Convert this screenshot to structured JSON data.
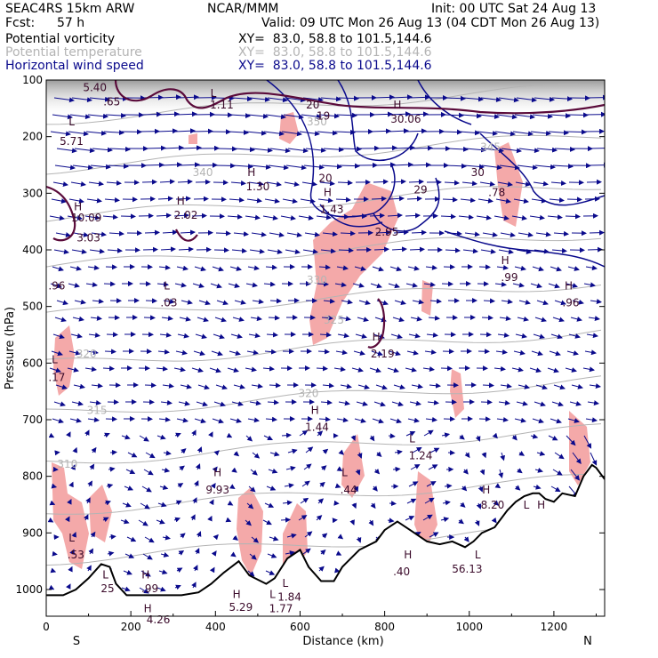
{
  "header": {
    "model": "SEAC4RS 15km ARW",
    "org": "NCAR/MMM",
    "init": "Init: 00 UTC Sat 24 Aug 13",
    "fcst_label": "Fcst:",
    "fcst_value": "57 h",
    "valid": "Valid: 09 UTC Mon 26 Aug 13 (04 CDT Mon 26 Aug 13)",
    "fields": [
      {
        "name": "Potential vorticity",
        "xy": "XY=  83.0, 58.8 to 101.5,144.6",
        "color": "#000000"
      },
      {
        "name": "Potential temperature",
        "xy": "XY=  83.0, 58.8 to 101.5,144.6",
        "color": "#b4b4b4"
      },
      {
        "name": "Horizontal wind speed",
        "xy": "XY=  83.0, 58.8 to 101.5,144.6",
        "color": "#0a0a8c"
      }
    ]
  },
  "chart_data": {
    "type": "cross-section",
    "xlabel": "Distance (km)",
    "ylabel": "Pressure (hPa)",
    "xlim": [
      0,
      1320
    ],
    "ylim": [
      1050,
      100
    ],
    "xticks": [
      0,
      200,
      400,
      600,
      800,
      1000,
      1200
    ],
    "yticks": [
      100,
      200,
      300,
      400,
      500,
      600,
      700,
      800,
      900,
      1000
    ],
    "left_end": "S",
    "right_end": "N",
    "colors": {
      "pv_fill": "#f4a9a9",
      "pv_line": "#5a0a3a",
      "theta": "#b4b4b4",
      "wind": "#0a0a8c",
      "terrain": "#000000"
    },
    "theta_labels": [
      {
        "text": "350",
        "x": 640,
        "p": 180
      },
      {
        "text": "345",
        "x": 1050,
        "p": 225
      },
      {
        "text": "340",
        "x": 370,
        "p": 270
      },
      {
        "text": "330",
        "x": 640,
        "p": 460
      },
      {
        "text": "325",
        "x": 680,
        "p": 530
      },
      {
        "text": "320",
        "x": 620,
        "p": 660
      },
      {
        "text": "320",
        "x": 95,
        "p": 590
      },
      {
        "text": "315",
        "x": 120,
        "p": 690
      },
      {
        "text": "310",
        "x": 50,
        "p": 785
      }
    ],
    "extrema": [
      {
        "text": "5.40",
        "x": 115,
        "p": 120
      },
      {
        "text": ".65",
        "x": 155,
        "p": 145
      },
      {
        "text": "L",
        "x": 395,
        "p": 130
      },
      {
        "text": "1.11",
        "x": 415,
        "p": 150
      },
      {
        "text": "L",
        "x": 60,
        "p": 180
      },
      {
        "text": "5.71",
        "x": 60,
        "p": 215
      },
      {
        "text": "20",
        "x": 630,
        "p": 150
      },
      {
        "text": "19",
        "x": 655,
        "p": 170
      },
      {
        "text": "H",
        "x": 830,
        "p": 150
      },
      {
        "text": "30.06",
        "x": 850,
        "p": 175
      },
      {
        "text": "H",
        "x": 485,
        "p": 270
      },
      {
        "text": "1.30",
        "x": 500,
        "p": 295
      },
      {
        "text": "20",
        "x": 660,
        "p": 280
      },
      {
        "text": "H",
        "x": 665,
        "p": 305
      },
      {
        "text": "1.43",
        "x": 675,
        "p": 335
      },
      {
        "text": "30",
        "x": 1020,
        "p": 270
      },
      {
        "text": ".78",
        "x": 1065,
        "p": 305
      },
      {
        "text": "29",
        "x": 885,
        "p": 300
      },
      {
        "text": "H",
        "x": 318,
        "p": 320
      },
      {
        "text": "2.02",
        "x": 330,
        "p": 345
      },
      {
        "text": "H",
        "x": 75,
        "p": 330
      },
      {
        "text": "10.09",
        "x": 95,
        "p": 350
      },
      {
        "text": "3.03",
        "x": 100,
        "p": 385
      },
      {
        "text": "2.95",
        "x": 805,
        "p": 375
      },
      {
        "text": "H",
        "x": 1085,
        "p": 425
      },
      {
        "text": ".99",
        "x": 1095,
        "p": 455
      },
      {
        "text": ".96",
        "x": 25,
        "p": 470
      },
      {
        "text": "L",
        "x": 285,
        "p": 470
      },
      {
        "text": ".03",
        "x": 290,
        "p": 500
      },
      {
        "text": "H",
        "x": 1235,
        "p": 470
      },
      {
        "text": ".96",
        "x": 1240,
        "p": 500
      },
      {
        "text": "H",
        "x": 780,
        "p": 560
      },
      {
        "text": "2.19",
        "x": 795,
        "p": 590
      },
      {
        "text": "L",
        "x": 20,
        "p": 600
      },
      {
        "text": ".17",
        "x": 25,
        "p": 632
      },
      {
        "text": "H",
        "x": 635,
        "p": 690
      },
      {
        "text": "1.44",
        "x": 640,
        "p": 720
      },
      {
        "text": "L",
        "x": 865,
        "p": 740
      },
      {
        "text": "1.24",
        "x": 885,
        "p": 770
      },
      {
        "text": "H",
        "x": 405,
        "p": 800
      },
      {
        "text": "9.93",
        "x": 405,
        "p": 830
      },
      {
        "text": "L",
        "x": 705,
        "p": 800
      },
      {
        "text": ".44",
        "x": 715,
        "p": 830
      },
      {
        "text": "H",
        "x": 1040,
        "p": 830
      },
      {
        "text": "8.20",
        "x": 1055,
        "p": 857
      },
      {
        "text": "L",
        "x": 1135,
        "p": 857
      },
      {
        "text": "H",
        "x": 1170,
        "p": 857
      },
      {
        "text": "L",
        "x": 60,
        "p": 915
      },
      {
        "text": ".53",
        "x": 70,
        "p": 945
      },
      {
        "text": "L",
        "x": 140,
        "p": 980
      },
      {
        "text": "25",
        "x": 145,
        "p": 1005
      },
      {
        "text": "H",
        "x": 235,
        "p": 980
      },
      {
        "text": ".99",
        "x": 245,
        "p": 1005
      },
      {
        "text": "H",
        "x": 855,
        "p": 945
      },
      {
        "text": ".40",
        "x": 840,
        "p": 975
      },
      {
        "text": "56.13",
        "x": 995,
        "p": 970
      },
      {
        "text": "L",
        "x": 1020,
        "p": 945
      },
      {
        "text": "H",
        "x": 450,
        "p": 1015
      },
      {
        "text": "5.29",
        "x": 460,
        "p": 1038
      },
      {
        "text": "L",
        "x": 535,
        "p": 1015
      },
      {
        "text": "L",
        "x": 565,
        "p": 995
      },
      {
        "text": "1.84",
        "x": 575,
        "p": 1020
      },
      {
        "text": "1.77",
        "x": 555,
        "p": 1040
      },
      {
        "text": "H",
        "x": 240,
        "p": 1040
      },
      {
        "text": "4.26",
        "x": 265,
        "p": 1060
      }
    ]
  }
}
